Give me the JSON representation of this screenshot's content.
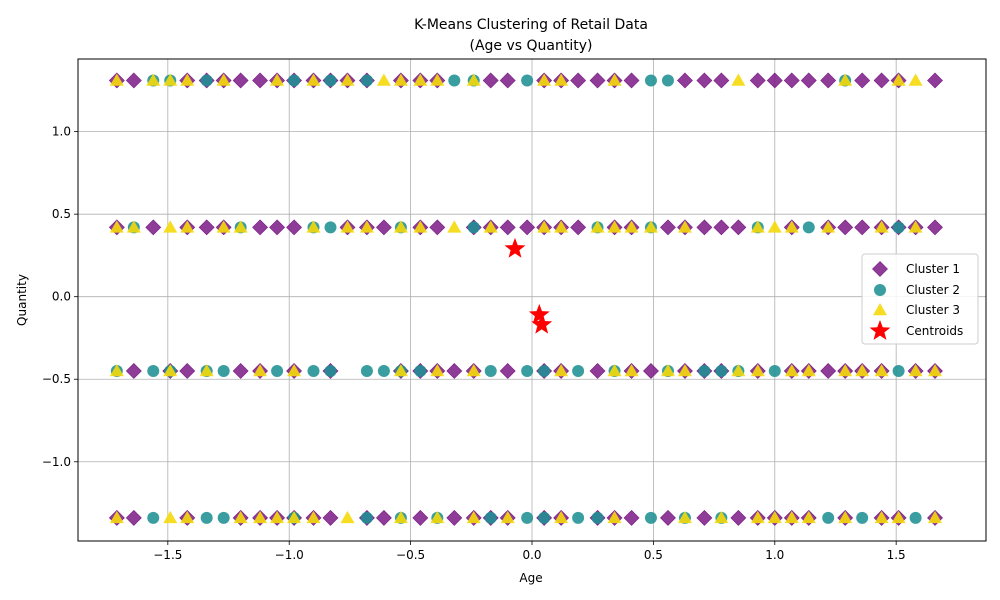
{
  "chart_data": {
    "type": "scatter",
    "title_lines": [
      "K-Means Clustering of Retail Data",
      "(Age vs Quantity)"
    ],
    "xlabel": "Age",
    "ylabel": "Quantity",
    "xlim": [
      -1.87,
      1.87
    ],
    "ylim": [
      -1.48,
      1.44
    ],
    "xticks": [
      -1.5,
      -1.0,
      -0.5,
      0.0,
      0.5,
      1.0,
      1.5
    ],
    "xtick_labels": [
      "−1.5",
      "−1.0",
      "−0.5",
      "0.0",
      "0.5",
      "1.0",
      "1.5"
    ],
    "yticks": [
      -1.0,
      -0.5,
      0.0,
      0.5,
      1.0
    ],
    "ytick_labels": [
      "−1.0",
      "−0.5",
      "0.0",
      "0.5",
      "1.0"
    ],
    "grid": true,
    "legend_position": "center-right",
    "age_levels": [
      -1.71,
      -1.64,
      -1.56,
      -1.49,
      -1.42,
      -1.34,
      -1.27,
      -1.2,
      -1.12,
      -1.05,
      -0.98,
      -0.9,
      -0.83,
      -0.76,
      -0.68,
      -0.61,
      -0.54,
      -0.46,
      -0.39,
      -0.32,
      -0.24,
      -0.17,
      -0.1,
      -0.02,
      0.05,
      0.12,
      0.19,
      0.27,
      0.34,
      0.41,
      0.49,
      0.56,
      0.63,
      0.71,
      0.78,
      0.85,
      0.93,
      1.0,
      1.07,
      1.14,
      1.22,
      1.29,
      1.36,
      1.44,
      1.51,
      1.58,
      1.66
    ],
    "quantity_levels": [
      1.31,
      0.42,
      -0.45,
      -1.34
    ],
    "series": [
      {
        "name": "Cluster 1",
        "marker": "diamond",
        "color": "#7b1a86",
        "points": {
          "1.31": [
            -1.71,
            -1.64,
            -1.42,
            -1.34,
            -1.27,
            -1.2,
            -1.12,
            -1.05,
            -0.98,
            -0.9,
            -0.83,
            -0.76,
            -0.68,
            -0.54,
            -0.46,
            -0.39,
            -0.17,
            -0.1,
            0.05,
            0.12,
            0.19,
            0.27,
            0.34,
            0.41,
            0.63,
            0.71,
            0.78,
            0.93,
            1.0,
            1.07,
            1.14,
            1.22,
            1.36,
            1.44,
            1.51,
            1.66
          ],
          "0.42": [
            -1.71,
            -1.56,
            -1.42,
            -1.34,
            -1.27,
            -1.12,
            -1.05,
            -0.98,
            -0.76,
            -0.68,
            -0.61,
            -0.46,
            -0.39,
            -0.24,
            -0.17,
            -0.1,
            -0.02,
            0.05,
            0.12,
            0.19,
            0.34,
            0.41,
            0.56,
            0.63,
            0.71,
            0.78,
            0.85,
            1.07,
            1.22,
            1.29,
            1.36,
            1.44,
            1.51,
            1.58,
            1.66
          ],
          "-0.45": [
            -1.64,
            -1.49,
            -1.42,
            -1.2,
            -1.12,
            -0.98,
            -0.83,
            -0.54,
            -0.46,
            -0.39,
            -0.32,
            -0.24,
            -0.1,
            0.05,
            0.12,
            0.27,
            0.41,
            0.49,
            0.63,
            0.71,
            0.78,
            0.93,
            1.07,
            1.14,
            1.22,
            1.29,
            1.36,
            1.44,
            1.58,
            1.66
          ],
          "-1.34": [
            -1.71,
            -1.64,
            -1.42,
            -1.2,
            -1.12,
            -1.05,
            -0.98,
            -0.9,
            -0.83,
            -0.68,
            -0.61,
            -0.46,
            -0.32,
            -0.24,
            -0.17,
            -0.1,
            0.05,
            0.12,
            0.27,
            0.34,
            0.41,
            0.56,
            0.71,
            0.85,
            0.93,
            1.0,
            1.07,
            1.14,
            1.29,
            1.44,
            1.51,
            1.66
          ]
        }
      },
      {
        "name": "Cluster 2",
        "marker": "circle",
        "color": "#1f8f93",
        "points": {
          "1.31": [
            -1.56,
            -1.49,
            -1.34,
            -0.98,
            -0.83,
            -0.68,
            -0.32,
            -0.24,
            -0.02,
            0.49,
            0.56,
            1.29
          ],
          "0.42": [
            -1.64,
            -1.2,
            -0.9,
            -0.83,
            -0.54,
            -0.24,
            0.27,
            0.49,
            0.93,
            1.14,
            1.51
          ],
          "-0.45": [
            -1.71,
            -1.56,
            -1.49,
            -1.34,
            -1.27,
            -1.05,
            -0.9,
            -0.83,
            -0.68,
            -0.61,
            -0.54,
            -0.46,
            -0.17,
            -0.02,
            0.05,
            0.19,
            0.34,
            0.56,
            0.71,
            0.78,
            0.85,
            1.0,
            1.51
          ],
          "-1.34": [
            -1.56,
            -1.34,
            -1.27,
            -0.98,
            -0.68,
            -0.54,
            -0.39,
            -0.17,
            -0.02,
            0.05,
            0.19,
            0.27,
            0.49,
            0.63,
            0.78,
            1.22,
            1.36,
            1.58
          ]
        }
      },
      {
        "name": "Cluster 3",
        "marker": "triangle",
        "color": "#f5d90a",
        "points": {
          "1.31": [
            -1.71,
            -1.56,
            -1.49,
            -1.42,
            -1.27,
            -1.05,
            -0.9,
            -0.76,
            -0.61,
            -0.54,
            -0.46,
            -0.39,
            -0.24,
            0.05,
            0.12,
            0.34,
            0.85,
            1.29,
            1.51,
            1.58
          ],
          "0.42": [
            -1.71,
            -1.64,
            -1.49,
            -1.42,
            -1.27,
            -1.2,
            -0.9,
            -0.76,
            -0.68,
            -0.54,
            -0.46,
            -0.32,
            -0.17,
            0.05,
            0.12,
            0.27,
            0.34,
            0.41,
            0.49,
            0.63,
            0.93,
            1.0,
            1.07,
            1.22,
            1.44,
            1.58
          ],
          "-0.45": [
            -1.71,
            -1.49,
            -1.34,
            -1.12,
            -0.98,
            -0.54,
            -0.39,
            -0.24,
            0.12,
            0.34,
            0.41,
            0.56,
            0.63,
            0.85,
            0.93,
            1.07,
            1.14,
            1.29,
            1.36,
            1.44,
            1.58,
            1.66
          ],
          "-1.34": [
            -1.71,
            -1.49,
            -1.42,
            -1.2,
            -1.12,
            -1.05,
            -0.98,
            -0.9,
            -0.76,
            -0.54,
            -0.39,
            -0.24,
            -0.1,
            0.12,
            0.34,
            0.63,
            0.78,
            0.93,
            1.0,
            1.07,
            1.14,
            1.29,
            1.44,
            1.51,
            1.66
          ]
        }
      },
      {
        "name": "Centroids",
        "marker": "star",
        "color": "#ff0000",
        "x": [
          -0.07,
          0.03,
          0.04
        ],
        "y": [
          0.29,
          -0.11,
          -0.17
        ]
      }
    ]
  }
}
